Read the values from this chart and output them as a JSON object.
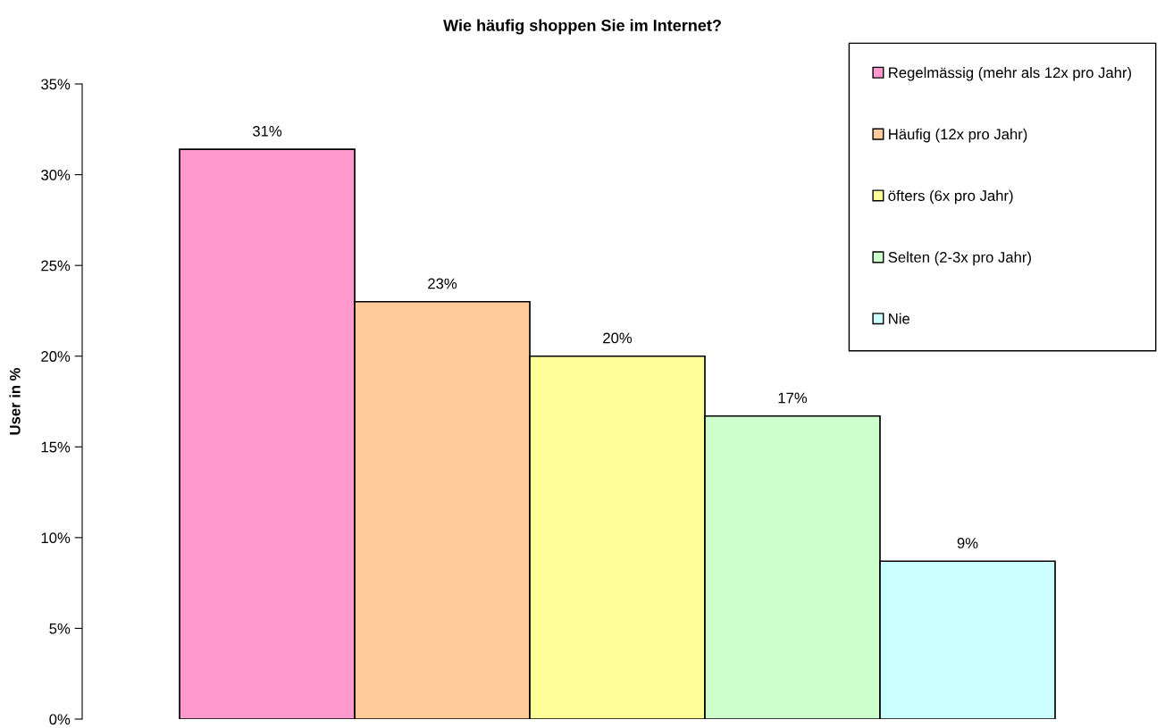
{
  "chart_data": {
    "type": "bar",
    "title": "Wie häufig shoppen Sie im Internet?",
    "ylabel": "User in %",
    "categories": [
      null
    ],
    "series": [
      {
        "name": "Regelmässig (mehr als 12x pro Jahr)",
        "color": "#ff99cc",
        "values": [
          31.4
        ],
        "value_labels": [
          "31%"
        ]
      },
      {
        "name": "Häufig (12x pro Jahr)",
        "color": "#ffcc99",
        "values": [
          23.0
        ],
        "value_labels": [
          "23%"
        ]
      },
      {
        "name": "öfters (6x pro Jahr)",
        "color": "#ffff99",
        "values": [
          20.0
        ],
        "value_labels": [
          "20%"
        ]
      },
      {
        "name": "Selten (2-3x pro Jahr)",
        "color": "#ccffcc",
        "values": [
          16.7
        ],
        "value_labels": [
          "17%"
        ]
      },
      {
        "name": "Nie",
        "color": "#ccffff",
        "values": [
          8.7
        ],
        "value_labels": [
          "9%"
        ]
      }
    ],
    "ylim": [
      0,
      35
    ],
    "yticks": [
      {
        "value": 0,
        "label": "0%"
      },
      {
        "value": 5,
        "label": "5%"
      },
      {
        "value": 10,
        "label": "10%"
      },
      {
        "value": 15,
        "label": "15%"
      },
      {
        "value": 20,
        "label": "20%"
      },
      {
        "value": 25,
        "label": "25%"
      },
      {
        "value": 30,
        "label": "30%"
      },
      {
        "value": 35,
        "label": "35%"
      }
    ],
    "grid": false,
    "legend": "top right"
  }
}
